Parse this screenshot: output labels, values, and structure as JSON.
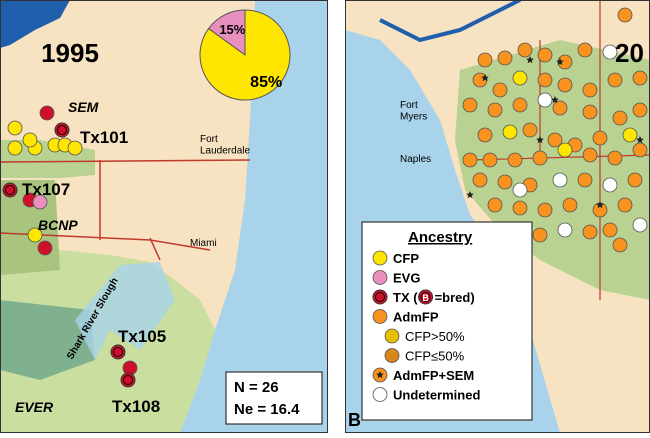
{
  "panel_a": {
    "year": "1995",
    "pie": {
      "values": [
        15,
        85
      ],
      "value_labels": [
        "15%",
        "85%"
      ],
      "colors": [
        "#e88fc0",
        "#ffe600"
      ]
    },
    "labels": {
      "sem": "SEM",
      "tx101": "Tx101",
      "fort_lauderdale": "Fort\nLauderdale",
      "tx107": "Tx107",
      "bcnp": "BCNP",
      "miami": "Miami",
      "shark_river": "Shark River Slough",
      "tx105": "Tx105",
      "ever": "EVER",
      "tx108": "Tx108"
    },
    "stats": [
      "N = 26",
      "Ne = 16.4"
    ]
  },
  "panel_b": {
    "letter": "B",
    "year": "20",
    "labels": {
      "fort_myers": "Fort\nMyers",
      "naples": "Naples"
    },
    "legend": {
      "title": "Ancestry",
      "items": [
        {
          "label": "CFP",
          "color": "#ffe600"
        },
        {
          "label": "EVG",
          "color": "#e88fc0"
        },
        {
          "label": "TX (",
          "color": "#d0102a",
          "badge": "B",
          "suffix": "=bred)"
        },
        {
          "label": "AdmFP",
          "color": "#f7931e"
        },
        {
          "label": "CFP>50%",
          "color": "#e6c000",
          "sub": true
        },
        {
          "label": "CFP≤50%",
          "color": "#d9861a",
          "sub": true
        },
        {
          "label": "AdmFP+SEM",
          "color": "#f7931e",
          "star": true
        },
        {
          "label": "Undetermined",
          "color": "#ffffff"
        }
      ]
    }
  }
}
